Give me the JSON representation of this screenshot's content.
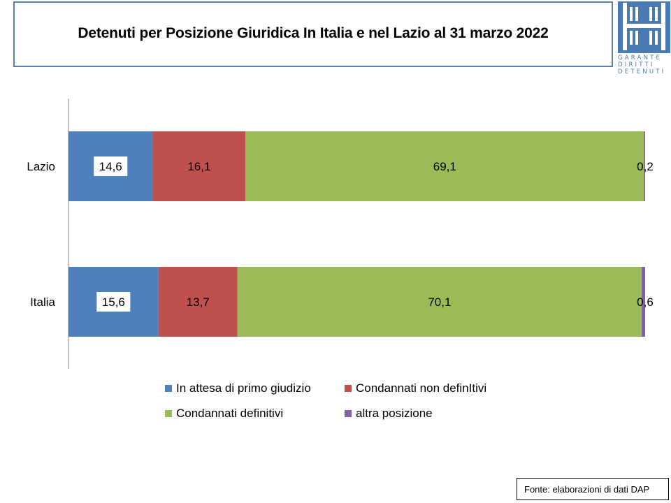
{
  "title": "Detenuti per Posizione Giuridica  In Italia e nel Lazio al 31 marzo 2022",
  "logo": {
    "lines": [
      "GARANTE",
      "DIRITTI",
      "DETENUTI"
    ]
  },
  "source": "Fonte: elaborazioni di dati DAP",
  "colors": {
    "in_attesa": "#4f81bd",
    "non_definitivi": "#c0504d",
    "definitivi": "#9bbb59",
    "altra": "#8064a2",
    "logo": "#4a7ab4",
    "title_border": "#5b7fb1"
  },
  "chart_data": {
    "type": "bar",
    "orientation": "horizontal",
    "stacked": true,
    "categories": [
      "Lazio",
      "Italia"
    ],
    "series": [
      {
        "name": "In attesa di primo giudizio",
        "values": [
          14.6,
          15.6
        ],
        "labels": [
          "14,6",
          "15,6"
        ],
        "color": "#4f81bd"
      },
      {
        "name": "Condannati non definItivi",
        "values": [
          16.1,
          13.7
        ],
        "labels": [
          "16,1",
          "13,7"
        ],
        "color": "#c0504d"
      },
      {
        "name": "Condannati definitivi",
        "values": [
          69.1,
          70.1
        ],
        "labels": [
          "69,1",
          "70,1"
        ],
        "color": "#9bbb59"
      },
      {
        "name": "altra posizione",
        "values": [
          0.2,
          0.6
        ],
        "labels": [
          "0,2",
          "0,6"
        ],
        "color": "#8064a2"
      }
    ],
    "xlim": [
      0,
      100
    ],
    "grid": false,
    "legend_position": "bottom"
  }
}
